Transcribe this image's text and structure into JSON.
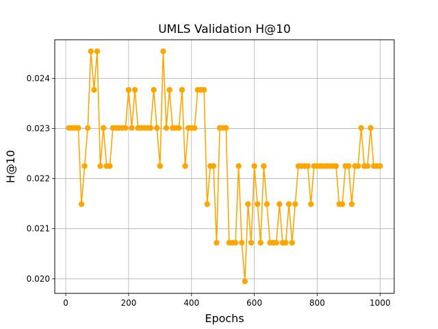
{
  "chart_data": {
    "type": "line",
    "title": "UMLS Validation H@10",
    "xlabel": "Epochs",
    "ylabel": "H@10",
    "xlim": [
      -35,
      1045
    ],
    "ylim": [
      0.01971,
      0.02477
    ],
    "x_ticks": [
      0,
      200,
      400,
      600,
      800,
      1000
    ],
    "y_ticks": [
      0.02,
      0.021,
      0.022,
      0.023,
      0.024
    ],
    "x_tick_labels": [
      "0",
      "200",
      "400",
      "600",
      "800",
      "1000"
    ],
    "y_tick_labels": [
      "0.020",
      "0.021",
      "0.022",
      "0.023",
      "0.024"
    ],
    "grid": true,
    "legend": false,
    "series": [
      {
        "color": "#ffa500",
        "marker": "circle",
        "x": [
          10,
          20,
          30,
          40,
          50,
          60,
          70,
          80,
          90,
          100,
          110,
          120,
          130,
          140,
          150,
          160,
          170,
          180,
          190,
          200,
          210,
          220,
          230,
          240,
          250,
          260,
          270,
          280,
          290,
          300,
          310,
          320,
          330,
          340,
          350,
          360,
          370,
          380,
          390,
          400,
          410,
          420,
          430,
          440,
          450,
          460,
          470,
          480,
          490,
          500,
          510,
          520,
          530,
          540,
          550,
          560,
          570,
          580,
          590,
          600,
          610,
          620,
          630,
          640,
          650,
          660,
          670,
          680,
          690,
          700,
          710,
          720,
          730,
          740,
          750,
          760,
          770,
          780,
          790,
          800,
          810,
          820,
          830,
          840,
          850,
          860,
          870,
          880,
          890,
          900,
          910,
          920,
          930,
          940,
          950,
          960,
          970,
          980,
          990,
          1000
        ],
        "values": [
          0.02301,
          0.02301,
          0.02301,
          0.02301,
          0.02149,
          0.02225,
          0.02301,
          0.02454,
          0.02377,
          0.02454,
          0.02225,
          0.02301,
          0.02225,
          0.02225,
          0.02301,
          0.02301,
          0.02301,
          0.02301,
          0.02301,
          0.02377,
          0.02301,
          0.02377,
          0.02301,
          0.02301,
          0.02301,
          0.02301,
          0.02301,
          0.02377,
          0.02301,
          0.02225,
          0.02454,
          0.02301,
          0.02377,
          0.02301,
          0.02301,
          0.02301,
          0.02377,
          0.02225,
          0.02301,
          0.02301,
          0.02301,
          0.02377,
          0.02377,
          0.02377,
          0.02149,
          0.02225,
          0.02225,
          0.02072,
          0.02301,
          0.02301,
          0.02301,
          0.02072,
          0.02072,
          0.02072,
          0.02225,
          0.02072,
          0.01995,
          0.02149,
          0.02072,
          0.02225,
          0.02149,
          0.02072,
          0.02225,
          0.02149,
          0.02072,
          0.02072,
          0.02072,
          0.02149,
          0.02072,
          0.02072,
          0.02149,
          0.02072,
          0.02149,
          0.02225,
          0.02225,
          0.02225,
          0.02225,
          0.02149,
          0.02225,
          0.02225,
          0.02225,
          0.02225,
          0.02225,
          0.02225,
          0.02225,
          0.02225,
          0.02149,
          0.02149,
          0.02225,
          0.02225,
          0.02149,
          0.02225,
          0.02225,
          0.02301,
          0.02225,
          0.02225,
          0.02301,
          0.02225,
          0.02225,
          0.02225
        ]
      }
    ]
  }
}
